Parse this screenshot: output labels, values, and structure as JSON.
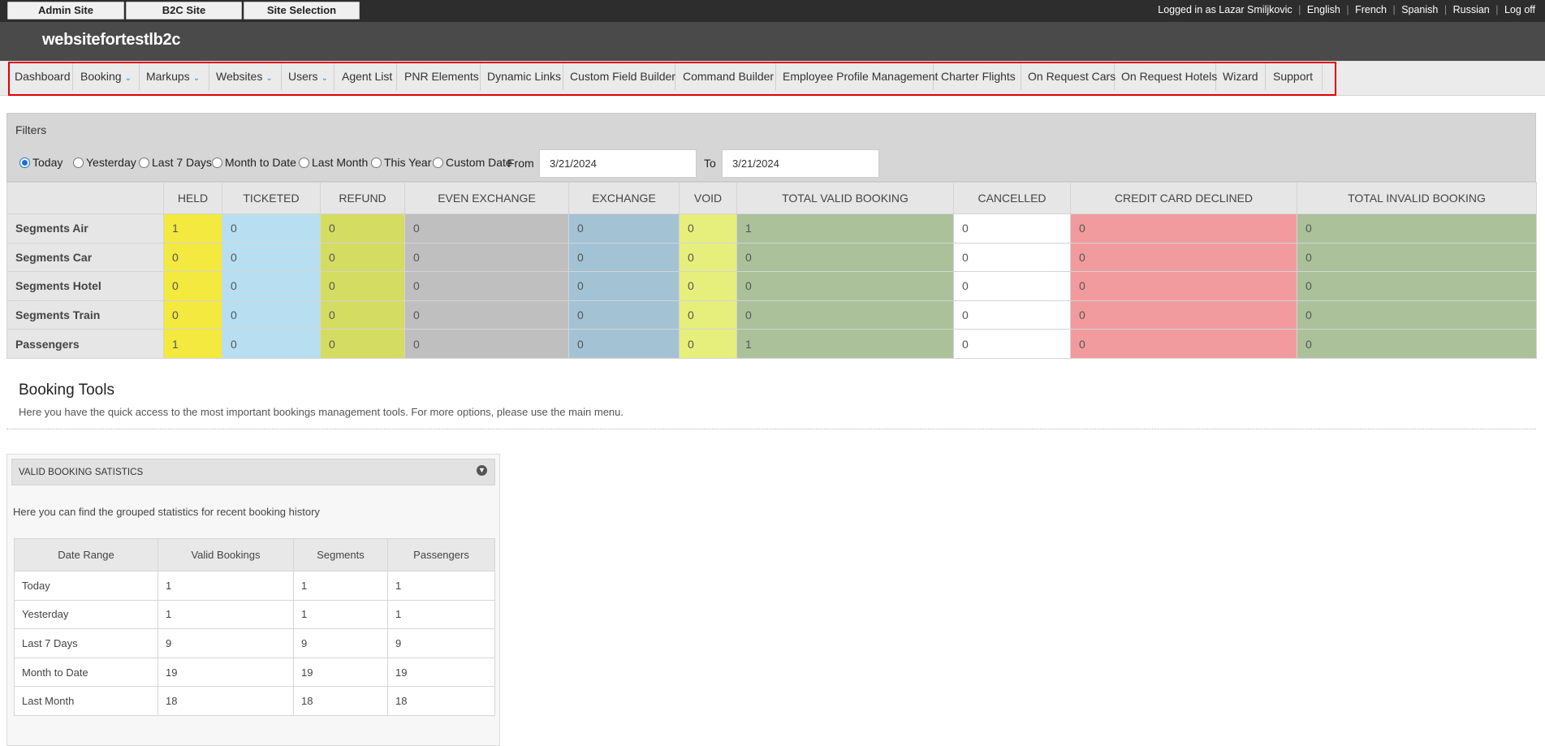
{
  "topbar": {
    "site_buttons": [
      "Admin Site",
      "B2C Site",
      "Site Selection"
    ],
    "logged_in_text": "Logged in as Lazar Smiljkovic",
    "languages": [
      "English",
      "French",
      "Spanish",
      "Russian"
    ],
    "logoff": "Log off"
  },
  "header": {
    "title": "websitefortestlb2c"
  },
  "nav": {
    "items": [
      "Dashboard",
      "Booking",
      "Markups",
      "Websites",
      "Users",
      "Agent List",
      "PNR Elements",
      "Dynamic Links",
      "Custom Field Builder",
      "Command Builder",
      "Employee Profile Management",
      "Charter Flights",
      "On Request Cars",
      "On Request Hotels",
      "Wizard",
      "Support"
    ],
    "dropdown_items": [
      "Booking",
      "Markups",
      "Websites",
      "Users"
    ],
    "highlight_color": "#e00000"
  },
  "filters": {
    "title": "Filters",
    "options": [
      "Today",
      "Yesterday",
      "Last 7 Days",
      "Month to Date",
      "Last Month",
      "This Year",
      "Custom Date"
    ],
    "selected": "Today",
    "from_label": "From",
    "from_value": "3/21/2024",
    "to_label": "To",
    "to_value": "3/21/2024"
  },
  "stats": {
    "columns": [
      "HELD",
      "TICKETED",
      "REFUND",
      "EVEN EXCHANGE",
      "EXCHANGE",
      "VOID",
      "TOTAL VALID BOOKING",
      "CANCELLED",
      "CREDIT CARD DECLINED",
      "TOTAL INVALID BOOKING"
    ],
    "rows": [
      {
        "label": "Segments Air",
        "values": [
          "1",
          "0",
          "0",
          "0",
          "0",
          "0",
          "1",
          "0",
          "0",
          "0"
        ]
      },
      {
        "label": "Segments Car",
        "values": [
          "0",
          "0",
          "0",
          "0",
          "0",
          "0",
          "0",
          "0",
          "0",
          "0"
        ]
      },
      {
        "label": "Segments Hotel",
        "values": [
          "0",
          "0",
          "0",
          "0",
          "0",
          "0",
          "0",
          "0",
          "0",
          "0"
        ]
      },
      {
        "label": "Segments Train",
        "values": [
          "0",
          "0",
          "0",
          "0",
          "0",
          "0",
          "0",
          "0",
          "0",
          "0"
        ]
      },
      {
        "label": "Passengers",
        "values": [
          "1",
          "0",
          "0",
          "0",
          "0",
          "0",
          "1",
          "0",
          "0",
          "0"
        ]
      }
    ]
  },
  "booking_tools": {
    "title": "Booking Tools",
    "description": "Here you have the quick access to the most important bookings management tools. For more options, please use the main menu."
  },
  "widget": {
    "title": "VALID BOOKING SATISTICS",
    "toggle_icon": "collapse-icon",
    "description": "Here you can find the grouped statistics for recent booking history",
    "columns": [
      "Date Range",
      "Valid Bookings",
      "Segments",
      "Passengers"
    ],
    "rows": [
      [
        "Today",
        "1",
        "1",
        "1"
      ],
      [
        "Yesterday",
        "1",
        "1",
        "1"
      ],
      [
        "Last 7 Days",
        "9",
        "9",
        "9"
      ],
      [
        "Month to Date",
        "19",
        "19",
        "19"
      ],
      [
        "Last Month",
        "18",
        "18",
        "18"
      ]
    ]
  }
}
